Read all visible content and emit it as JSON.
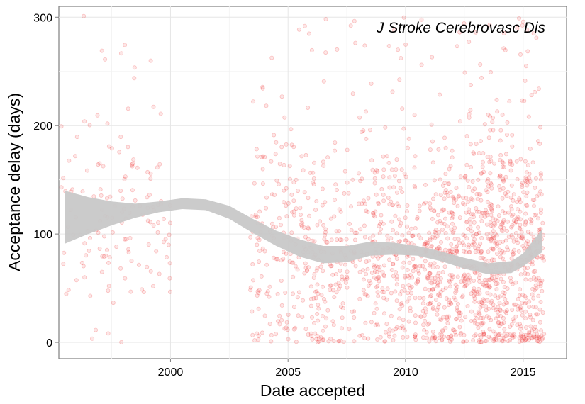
{
  "chart_data": {
    "type": "scatter",
    "title": "",
    "annotation": "J Stroke Cerebrovasc Dis",
    "xlabel": "Date accepted",
    "ylabel": "Acceptance delay (days)",
    "x_unit": "year",
    "xlim": [
      1995.25,
      2016.85
    ],
    "ylim": [
      -15,
      310
    ],
    "x_ticks": [
      {
        "value": 2000,
        "label": "2000"
      },
      {
        "value": 2005,
        "label": "2005"
      },
      {
        "value": 2010,
        "label": "2010"
      },
      {
        "value": 2015,
        "label": "2015"
      }
    ],
    "y_ticks": [
      {
        "value": 0,
        "label": "0"
      },
      {
        "value": 100,
        "label": "100"
      },
      {
        "value": 200,
        "label": "200"
      },
      {
        "value": 300,
        "label": "300"
      }
    ],
    "grid": true,
    "point_color": "#f03b3b",
    "band_color": "#c8c8c8",
    "smooth_band": {
      "x": [
        1995.5,
        1996.5,
        1997.5,
        1998.5,
        1999.5,
        2000.5,
        2001.5,
        2002.5,
        2003.5,
        2004.5,
        2005.5,
        2006.5,
        2007.5,
        2008.5,
        2009.5,
        2010.5,
        2011.5,
        2012.5,
        2013.5,
        2014.5,
        2015.0,
        2015.8
      ],
      "lower": [
        91,
        100,
        108,
        115,
        120,
        123,
        122,
        114,
        101,
        89,
        79,
        73,
        74,
        80,
        81,
        80,
        75,
        68,
        63,
        64,
        70,
        83
      ],
      "upper": [
        140,
        134,
        130,
        128,
        130,
        133,
        132,
        126,
        114,
        103,
        95,
        89,
        89,
        93,
        92,
        89,
        84,
        78,
        73,
        75,
        82,
        104
      ]
    },
    "clusters": [
      {
        "x_range": [
          1995.3,
          2000.1
        ],
        "mean": 118,
        "sd": 45,
        "min": 0,
        "max": 305,
        "count": 150
      },
      {
        "x_range": [
          2003.4,
          2006.0
        ],
        "mean": 85,
        "sd": 55,
        "min": 0,
        "max": 300,
        "count": 190
      },
      {
        "x_range": [
          2006.0,
          2008.5
        ],
        "mean": 70,
        "sd": 55,
        "min": 0,
        "max": 300,
        "count": 210
      },
      {
        "x_range": [
          2008.5,
          2011.0
        ],
        "mean": 72,
        "sd": 45,
        "min": 0,
        "max": 300,
        "count": 300
      },
      {
        "x_range": [
          2011.0,
          2013.0
        ],
        "mean": 70,
        "sd": 48,
        "min": 0,
        "max": 300,
        "count": 360
      },
      {
        "x_range": [
          2013.0,
          2015.9
        ],
        "mean": 72,
        "sd": 55,
        "min": 0,
        "max": 300,
        "count": 620
      }
    ]
  }
}
